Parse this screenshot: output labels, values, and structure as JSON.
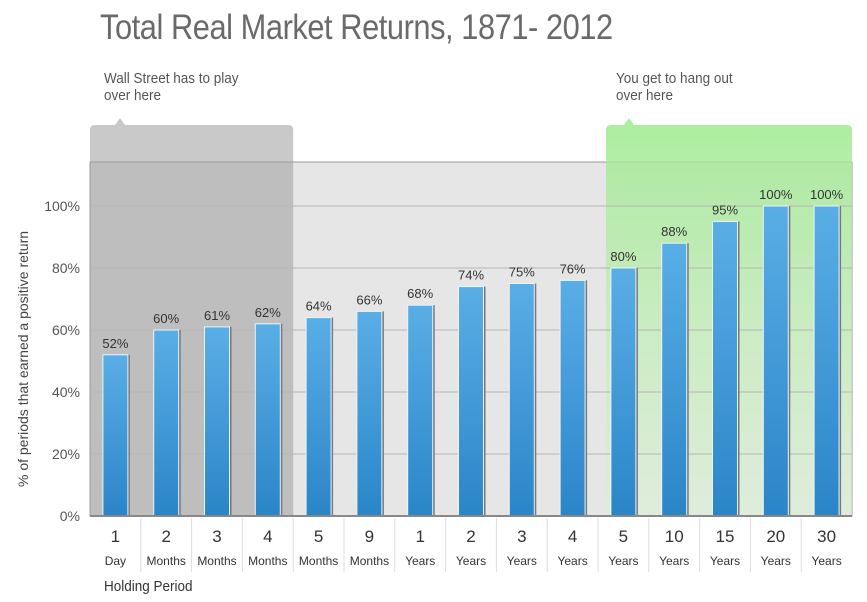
{
  "chart_data": {
    "type": "bar",
    "title": "Total Real Market Returns, 1871- 2012",
    "xlabel": "Holding Period",
    "ylabel": "% of periods that earned a positive return",
    "ylim": [
      0,
      115
    ],
    "yticks": [
      0,
      20,
      40,
      60,
      80,
      100
    ],
    "ytick_labels": [
      "0%",
      "20%",
      "40%",
      "60%",
      "80%",
      "100%"
    ],
    "grid": true,
    "categories": [
      {
        "num": "1",
        "unit": "Day"
      },
      {
        "num": "2",
        "unit": "Months"
      },
      {
        "num": "3",
        "unit": "Months"
      },
      {
        "num": "4",
        "unit": "Months"
      },
      {
        "num": "5",
        "unit": "Months"
      },
      {
        "num": "9",
        "unit": "Months"
      },
      {
        "num": "1",
        "unit": "Years"
      },
      {
        "num": "2",
        "unit": "Years"
      },
      {
        "num": "3",
        "unit": "Years"
      },
      {
        "num": "4",
        "unit": "Years"
      },
      {
        "num": "5",
        "unit": "Years"
      },
      {
        "num": "10",
        "unit": "Years"
      },
      {
        "num": "15",
        "unit": "Years"
      },
      {
        "num": "20",
        "unit": "Years"
      },
      {
        "num": "30",
        "unit": "Years"
      }
    ],
    "values": [
      52,
      60,
      61,
      62,
      64,
      66,
      68,
      74,
      75,
      76,
      80,
      88,
      95,
      100,
      100
    ],
    "data_labels": [
      "52%",
      "60%",
      "61%",
      "62%",
      "64%",
      "66%",
      "68%",
      "74%",
      "75%",
      "76%",
      "80%",
      "88%",
      "95%",
      "100%",
      "100%"
    ],
    "annotations": [
      {
        "text": "Wall Street has to play over here",
        "line1": "Wall Street has to play",
        "line2": "over here",
        "covers_categories": [
          0,
          3
        ],
        "color": "#a8a8a8"
      },
      {
        "text": "You get to hang out over here",
        "line1": "You get to hang out",
        "line2": "over here",
        "covers_categories": [
          10,
          14
        ],
        "color": "#9ef08f"
      }
    ],
    "colors": {
      "bar": "#3d97d8",
      "plot_bg": "#e6e6e6",
      "highlight_short": "#b0b0b0",
      "highlight_long": "#aef3a0"
    }
  }
}
